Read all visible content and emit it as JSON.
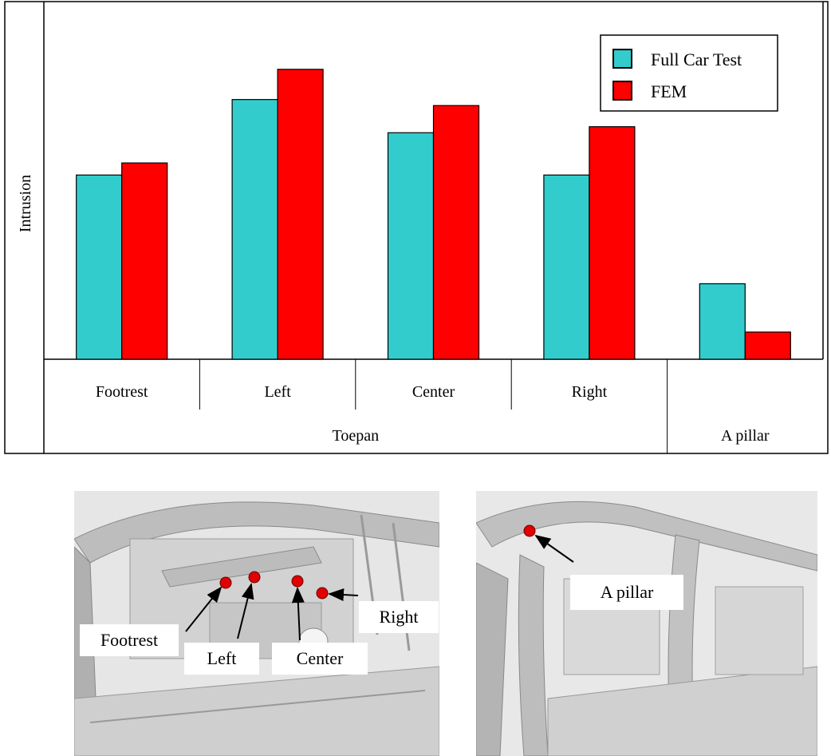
{
  "chart_data": {
    "type": "bar",
    "ylabel": "Intrusion",
    "categories": [
      "Footrest",
      "Left",
      "Center",
      "Right",
      "A pillar"
    ],
    "groups": [
      {
        "label": "Toepan",
        "categories": [
          "Footrest",
          "Left",
          "Center",
          "Right"
        ]
      },
      {
        "label": "A pillar",
        "categories": [
          "A pillar"
        ]
      }
    ],
    "series": [
      {
        "name": "Full Car Test",
        "color": "#33cccc",
        "values": [
          61,
          86,
          75,
          61,
          25
        ]
      },
      {
        "name": "FEM",
        "color": "#ff0000",
        "values": [
          65,
          96,
          84,
          77,
          9
        ]
      }
    ],
    "ylim": [
      0,
      100
    ],
    "grid": false,
    "legend": "top-right"
  },
  "photos": {
    "toepan_labels": {
      "footrest": "Footrest",
      "left": "Left",
      "center": "Center",
      "right": "Right"
    },
    "a_pillar_label": "A pillar",
    "marker_color": "#e00000",
    "body_color": "#c8c8c8"
  }
}
